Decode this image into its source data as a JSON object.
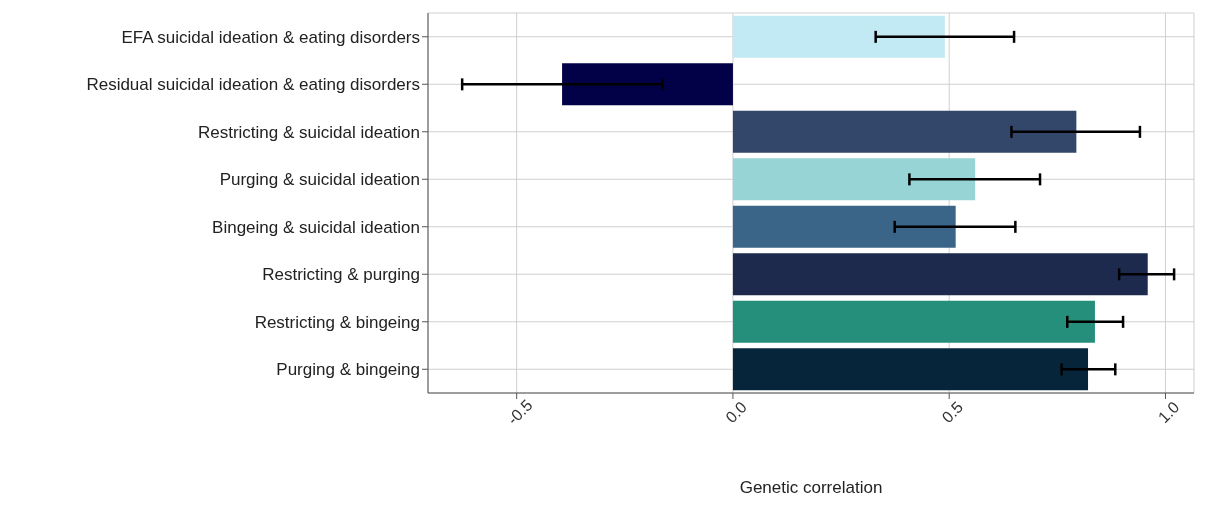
{
  "chart_data": {
    "type": "bar",
    "orientation": "horizontal",
    "xlabel": "Genetic correlation",
    "categories": [
      "EFA suicidal ideation & eating disorders",
      "Residual suicidal ideation & eating disorders",
      "Restricting & suicidal ideation",
      "Purging & suicidal ideation",
      "Bingeing & suicidal ideation",
      "Restricting & purging",
      "Restricting & bingeing",
      "Purging & bingeing"
    ],
    "values": [
      0.49,
      -0.395,
      0.794,
      0.56,
      0.515,
      0.959,
      0.837,
      0.821
    ],
    "colors": [
      "#c2eaf5",
      "#020046",
      "#33476a",
      "#97d4d6",
      "#3a6589",
      "#1d2a4e",
      "#268f7c",
      "#07253a"
    ],
    "errors": [
      [
        0.33,
        0.65
      ],
      [
        -0.626,
        -0.163
      ],
      [
        0.644,
        0.941
      ],
      [
        0.408,
        0.71
      ],
      [
        0.374,
        0.653
      ],
      [
        0.893,
        1.02
      ],
      [
        0.773,
        0.902
      ],
      [
        0.76,
        0.884
      ]
    ],
    "xlim": [
      -0.705,
      1.066
    ],
    "xticks": [
      {
        "value": -0.5,
        "label": "-0.5"
      },
      {
        "value": 0,
        "label": "0.0"
      },
      {
        "value": 0.5,
        "label": "0.5"
      },
      {
        "value": 1,
        "label": "1.0"
      }
    ],
    "grid": true
  }
}
